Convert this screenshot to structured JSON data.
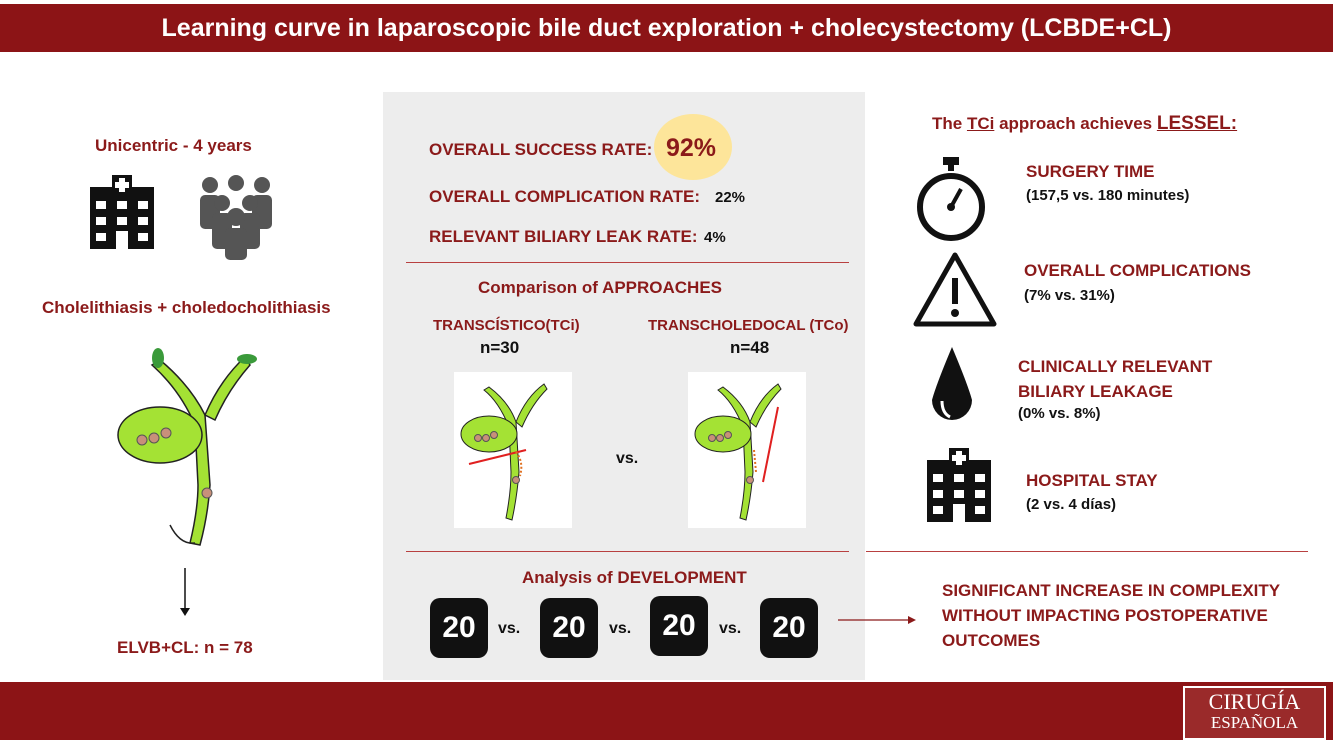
{
  "header": {
    "title": "Learning curve in laparoscopic bile duct exploration + cholecystectomy (LCBDE+CL)"
  },
  "left": {
    "study": "Unicentric - 4 years",
    "diagnosis": "Cholelithiasis + choledocholithiasis",
    "result": "ELVB+CL: n = 78"
  },
  "center": {
    "success_label": "OVERALL SUCCESS RATE:",
    "success_value": "92%",
    "complication_label": "OVERALL COMPLICATION RATE:",
    "complication_value": "22%",
    "leak_label": "RELEVANT BILIARY LEAK RATE:",
    "leak_value": "4%",
    "comparison_title": "Comparison of APPROACHES",
    "tci_label": "TRANSCÍSTICO(TCi)",
    "tci_n": "n=30",
    "tco_label": "TRANSCHOLEDOCAL (TCo)",
    "tco_n": "n=48",
    "vs": "vs.",
    "development_title": "Analysis of DEVELOPMENT",
    "groups": [
      "20",
      "20",
      "20",
      "20"
    ]
  },
  "right": {
    "title_prefix": "The ",
    "title_tci": "TCi",
    "title_mid": " approach achieves ",
    "title_lessel": "LESSEL:",
    "items": [
      {
        "icon": "stopwatch-icon",
        "label": "SURGERY TIME",
        "detail": "(157,5 vs. 180 minutes)"
      },
      {
        "icon": "warning-icon",
        "label": "OVERALL COMPLICATIONS",
        "detail": "(7% vs. 31%)"
      },
      {
        "icon": "drop-icon",
        "label": "CLINICALLY RELEVANT BILIARY LEAKAGE",
        "detail": "(0% vs. 8%)"
      },
      {
        "icon": "hospital-icon",
        "label": "HOSPITAL STAY",
        "detail": "(2 vs. 4 días)"
      }
    ],
    "conclusion": "SIGNIFICANT INCREASE IN COMPLEXITY WITHOUT IMPACTING POSTOPERATIVE OUTCOMES"
  },
  "logo": {
    "line1": "CIRUGÍA",
    "line2": "ESPAÑOLA"
  },
  "colors": {
    "accent": "#8c1416",
    "panel": "#ededed",
    "highlight": "#fde59a",
    "duct": "#a4e234"
  }
}
